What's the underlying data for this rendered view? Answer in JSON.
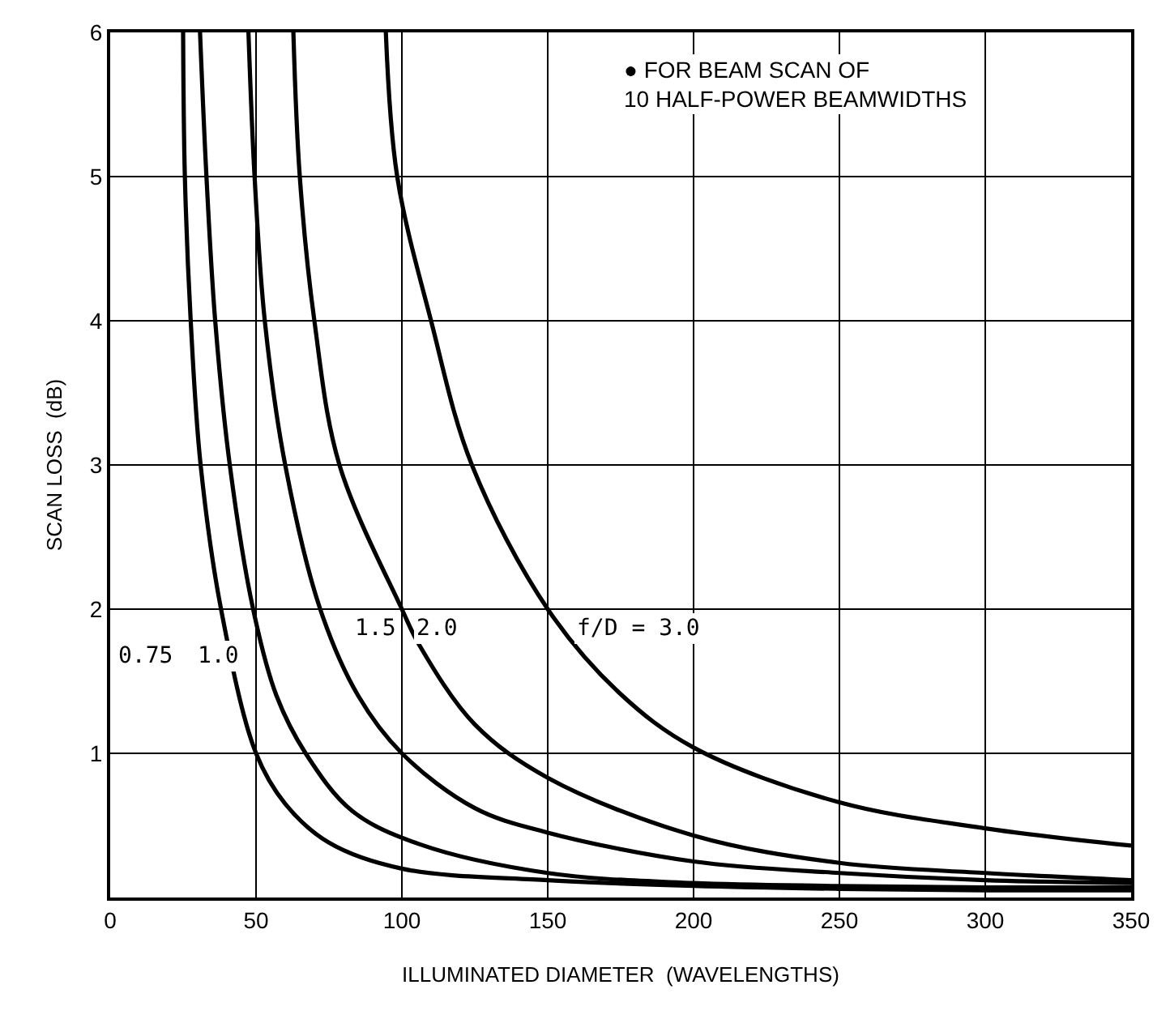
{
  "chart_data": {
    "type": "line",
    "xlabel": "ILLUMINATED DIAMETER  (WAVELENGTHS)",
    "ylabel": "SCAN LOSS  (dB)",
    "series": [
      {
        "color": "#000000",
        "x": [
          25,
          25.6,
          27.6,
          31,
          38,
          50,
          60,
          75,
          100,
          150,
          200,
          250,
          300,
          350
        ],
        "values": [
          6,
          5,
          4,
          3,
          2,
          1,
          0.65,
          0.38,
          0.2,
          0.12,
          0.08,
          0.06,
          0.05,
          0.05
        ]
      },
      {
        "color": "#000000",
        "x": [
          30.8,
          33,
          36,
          41,
          49,
          57,
          67,
          83,
          106,
          150,
          200,
          250,
          300,
          350
        ],
        "values": [
          6,
          5,
          4,
          3,
          2,
          1.4,
          1,
          0.6,
          0.37,
          0.17,
          0.1,
          0.08,
          0.07,
          0.07
        ]
      },
      {
        "color": "#000000",
        "x": [
          47.4,
          49.5,
          53,
          60,
          72,
          85,
          100,
          125,
          150,
          200,
          250,
          300,
          350
        ],
        "values": [
          6,
          5,
          4,
          3,
          2,
          1.4,
          1,
          0.62,
          0.45,
          0.25,
          0.17,
          0.12,
          0.1
        ]
      },
      {
        "color": "#000000",
        "x": [
          62.8,
          65,
          70,
          78.6,
          100,
          106,
          125,
          150,
          200,
          250,
          300,
          350
        ],
        "values": [
          6,
          5,
          4,
          3,
          2,
          1.75,
          1.2,
          0.83,
          0.43,
          0.24,
          0.17,
          0.12
        ]
      },
      {
        "color": "#000000",
        "x": [
          94.5,
          98.4,
          110,
          124,
          150,
          174.5,
          200,
          250,
          300,
          350
        ],
        "values": [
          6,
          5,
          4,
          3,
          2,
          1.42,
          1.04,
          0.66,
          0.48,
          0.36
        ]
      }
    ],
    "annotations": [
      {
        "text": "0.75",
        "x": 12,
        "y": 1.67
      },
      {
        "text": "1.0",
        "x": 37,
        "y": 1.67
      },
      {
        "text": "1.5",
        "x": 91,
        "y": 1.87
      },
      {
        "text": "2.0",
        "x": 112,
        "y": 1.87
      },
      "f/D = 3.0",
      "● FOR BEAM SCAN OF\n10 HALF-POWER BEAMWIDTHS"
    ],
    "xlim": [
      0,
      350
    ],
    "xticks": [
      0,
      50,
      100,
      150,
      200,
      250,
      300,
      350
    ],
    "ylim": [
      0,
      6
    ],
    "yticks": [
      1,
      2,
      3,
      4,
      5,
      6
    ],
    "grid": true,
    "marker": "none",
    "line_style": "solid"
  }
}
